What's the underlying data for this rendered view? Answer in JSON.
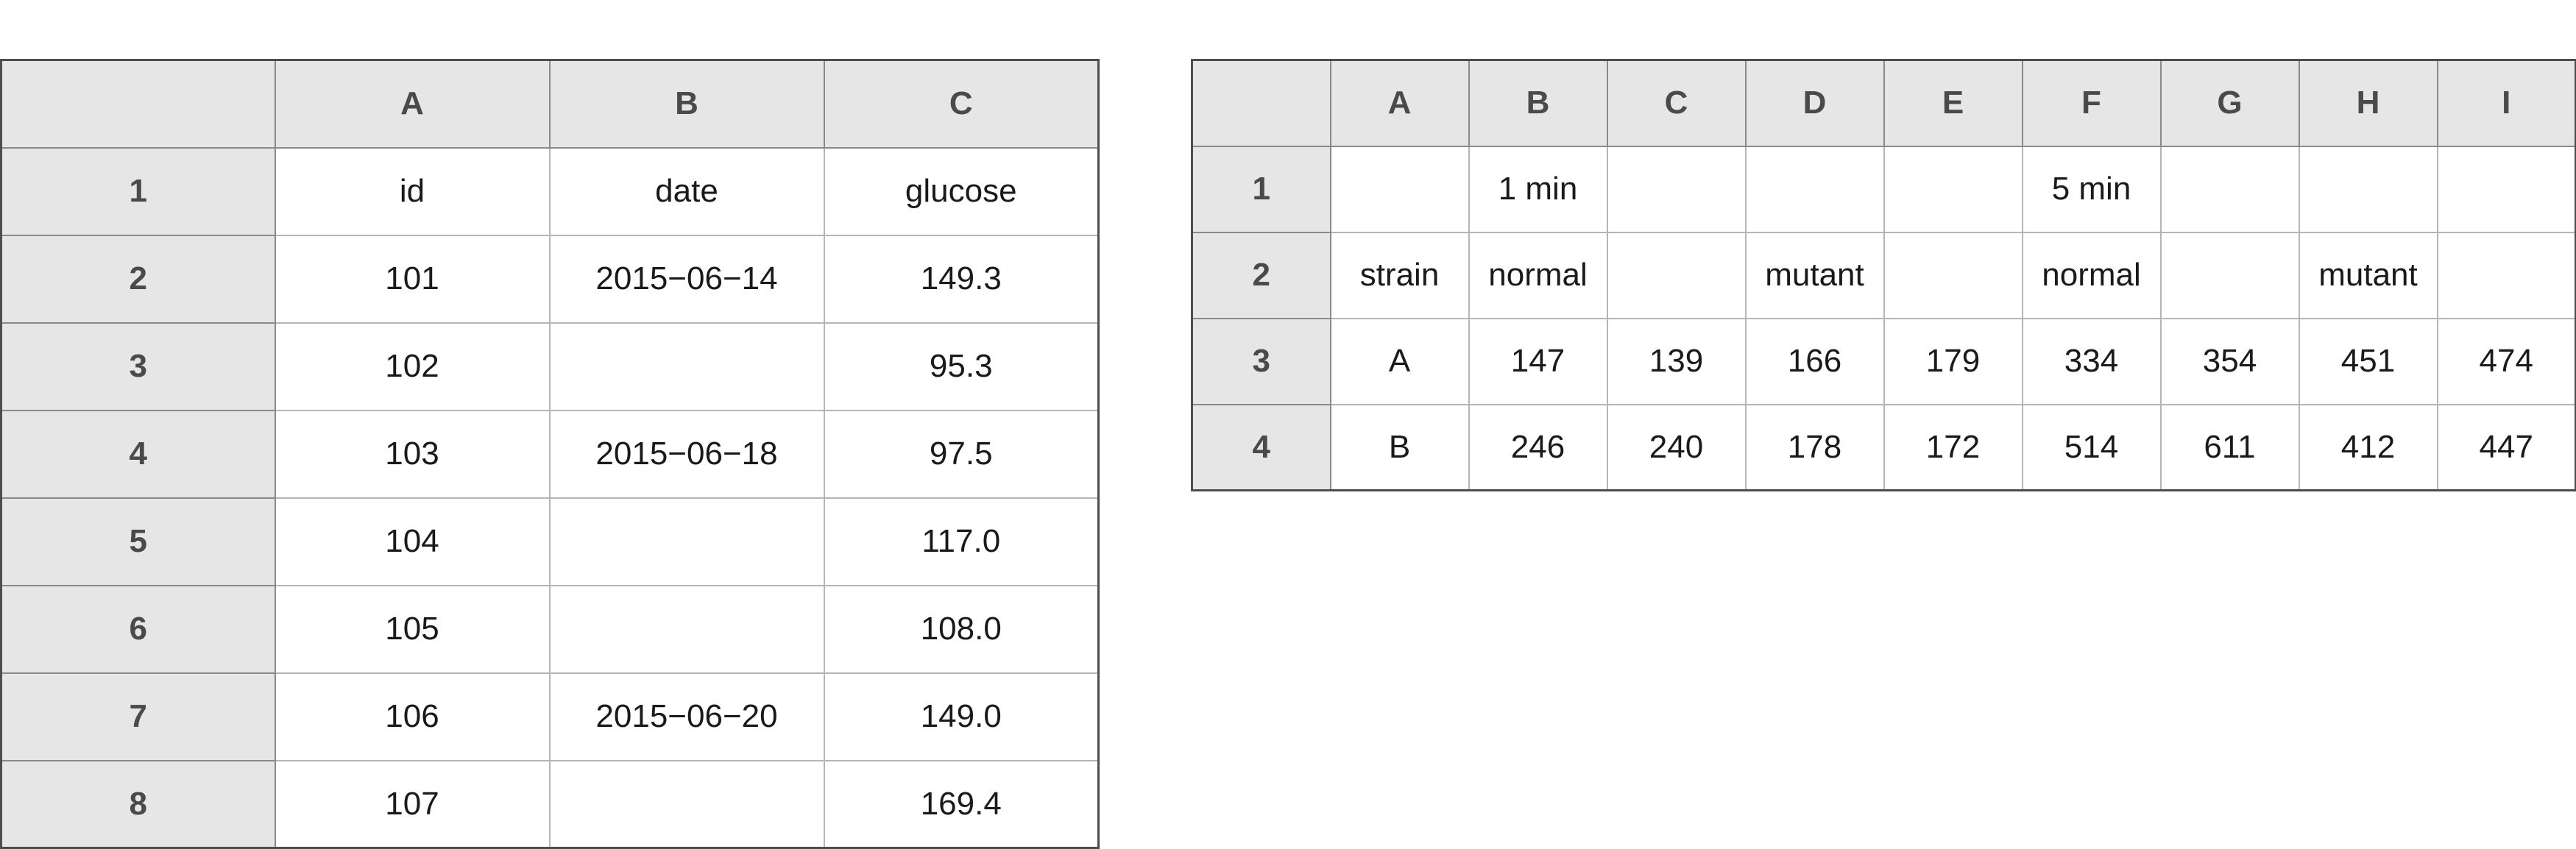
{
  "left_sheet": {
    "column_headers": [
      "A",
      "B",
      "C"
    ],
    "rows": [
      {
        "row": "1",
        "cells": [
          "id",
          "date",
          "glucose"
        ]
      },
      {
        "row": "2",
        "cells": [
          "101",
          "2015−06−14",
          "149.3"
        ]
      },
      {
        "row": "3",
        "cells": [
          "102",
          "",
          "95.3"
        ]
      },
      {
        "row": "4",
        "cells": [
          "103",
          "2015−06−18",
          "97.5"
        ]
      },
      {
        "row": "5",
        "cells": [
          "104",
          "",
          "117.0"
        ]
      },
      {
        "row": "6",
        "cells": [
          "105",
          "",
          "108.0"
        ]
      },
      {
        "row": "7",
        "cells": [
          "106",
          "2015−06−20",
          "149.0"
        ]
      },
      {
        "row": "8",
        "cells": [
          "107",
          "",
          "169.4"
        ]
      }
    ]
  },
  "right_sheet": {
    "column_headers": [
      "A",
      "B",
      "C",
      "D",
      "E",
      "F",
      "G",
      "H",
      "I"
    ],
    "rows": [
      {
        "row": "1",
        "cells": [
          "",
          "1 min",
          "",
          "",
          "",
          "5 min",
          "",
          "",
          ""
        ]
      },
      {
        "row": "2",
        "cells": [
          "strain",
          "normal",
          "",
          "mutant",
          "",
          "normal",
          "",
          "mutant",
          ""
        ]
      },
      {
        "row": "3",
        "cells": [
          "A",
          "147",
          "139",
          "166",
          "179",
          "334",
          "354",
          "451",
          "474"
        ]
      },
      {
        "row": "4",
        "cells": [
          "B",
          "246",
          "240",
          "178",
          "172",
          "514",
          "611",
          "412",
          "447"
        ]
      }
    ]
  }
}
